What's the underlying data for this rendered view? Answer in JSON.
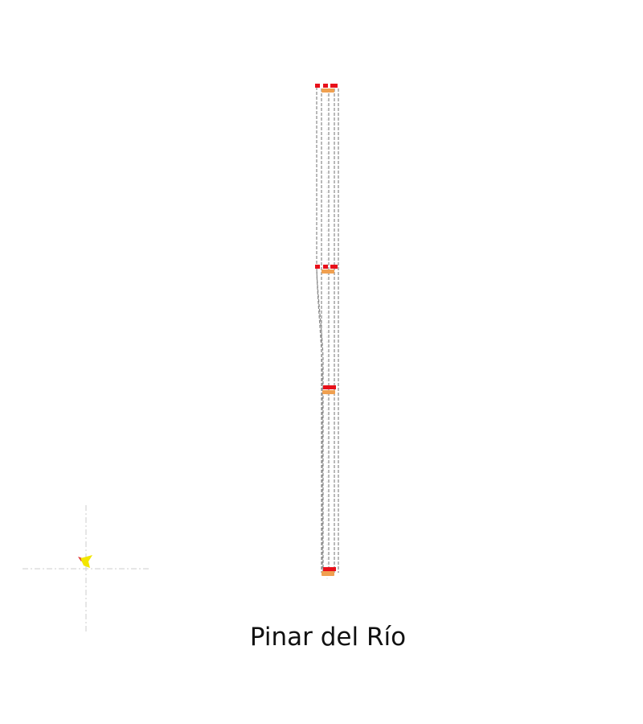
{
  "caption": "Pinar del Río",
  "colors": {
    "line": "#8a8a8a",
    "guide": "#d6d6d6",
    "station_red": "#e8101a",
    "station_orange": "#f0a050",
    "marker_yellow": "#f2e600",
    "marker_red": "#e03030"
  },
  "icons": {
    "location_marker": "yellow-arrow-marker"
  }
}
